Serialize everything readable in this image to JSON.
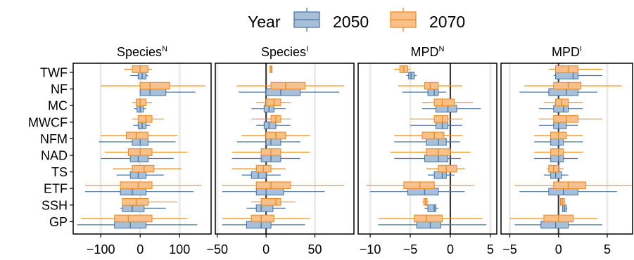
{
  "legend": {
    "title": "Year",
    "entries": [
      {
        "label": "2050",
        "fill": "#a8bfd8",
        "stroke": "#4a78a8"
      },
      {
        "label": "2070",
        "fill": "#f9c08a",
        "stroke": "#f08c24"
      }
    ]
  },
  "chart_data": [
    {
      "type": "box",
      "title": "Species",
      "title_sup": "N",
      "categories": [
        "TWF",
        "NF",
        "MC",
        "MWCF",
        "NFM",
        "NAD",
        "TS",
        "ETF",
        "SSH",
        "GP"
      ],
      "xlim": [
        -170,
        180
      ],
      "xticks": [
        -100,
        0,
        100
      ],
      "grid": true,
      "zero_line": false,
      "series": [
        {
          "name": "2050",
          "boxes": [
            {
              "min": -25,
              "q1": -5,
              "median": 5,
              "q3": 15,
              "max": 20
            },
            {
              "min": 0,
              "q1": 0,
              "median": 25,
              "q3": 65,
              "max": 140
            },
            {
              "min": -15,
              "q1": -8,
              "median": 0,
              "q3": 8,
              "max": 15
            },
            {
              "min": -18,
              "q1": -5,
              "median": 5,
              "q3": 15,
              "max": 25
            },
            {
              "min": -105,
              "q1": -20,
              "median": 0,
              "q3": 20,
              "max": 90
            },
            {
              "min": -100,
              "q1": -25,
              "median": -5,
              "q3": 20,
              "max": 85
            },
            {
              "min": -60,
              "q1": -25,
              "median": -5,
              "q3": 15,
              "max": 60
            },
            {
              "min": -140,
              "q1": -50,
              "median": -20,
              "q3": 15,
              "max": 135
            },
            {
              "min": -50,
              "q1": -45,
              "median": -20,
              "q3": 10,
              "max": 65
            },
            {
              "min": -160,
              "q1": -65,
              "median": -25,
              "q3": 15,
              "max": 145
            }
          ]
        },
        {
          "name": "2070",
          "boxes": [
            {
              "min": -40,
              "q1": -20,
              "median": 0,
              "q3": 20,
              "max": 30
            },
            {
              "min": -100,
              "q1": 0,
              "median": 25,
              "q3": 75,
              "max": 165
            },
            {
              "min": -20,
              "q1": -10,
              "median": 0,
              "q3": 15,
              "max": 30
            },
            {
              "min": -20,
              "q1": -5,
              "median": 15,
              "q3": 30,
              "max": 60
            },
            {
              "min": -100,
              "q1": -35,
              "median": -10,
              "q3": 20,
              "max": 95
            },
            {
              "min": -90,
              "q1": -30,
              "median": 0,
              "q3": 30,
              "max": 120
            },
            {
              "min": -70,
              "q1": -20,
              "median": 10,
              "q3": 35,
              "max": 105
            },
            {
              "min": -140,
              "q1": -50,
              "median": -5,
              "q3": 30,
              "max": 155
            },
            {
              "min": -45,
              "q1": -45,
              "median": -10,
              "q3": 20,
              "max": 95
            },
            {
              "min": -150,
              "q1": -65,
              "median": -30,
              "q3": 30,
              "max": 120
            }
          ]
        }
      ]
    },
    {
      "type": "box",
      "title": "Species",
      "title_sup": "I",
      "categories": [
        "TWF",
        "NF",
        "MC",
        "MWCF",
        "NFM",
        "NAD",
        "TS",
        "ETF",
        "SSH",
        "GP"
      ],
      "xlim": [
        -52,
        90
      ],
      "xticks": [
        -50,
        0,
        50
      ],
      "grid": true,
      "zero_line": true,
      "series": [
        {
          "name": "2050",
          "boxes": [
            {
              "min": null,
              "q1": null,
              "median": null,
              "q3": null,
              "max": null
            },
            {
              "min": -28,
              "q1": 0,
              "median": 15,
              "q3": 35,
              "max": 75
            },
            {
              "min": -15,
              "q1": -2,
              "median": 3,
              "q3": 8,
              "max": 20
            },
            {
              "min": -10,
              "q1": -2,
              "median": 3,
              "q3": 10,
              "max": 25
            },
            {
              "min": -30,
              "q1": 0,
              "median": 5,
              "q3": 15,
              "max": 35
            },
            {
              "min": -35,
              "q1": -5,
              "median": 5,
              "q3": 15,
              "max": 35
            },
            {
              "min": -25,
              "q1": -15,
              "median": -8,
              "q3": 0,
              "max": 15
            },
            {
              "min": -45,
              "q1": -10,
              "median": 0,
              "q3": 18,
              "max": 60
            },
            {
              "min": -20,
              "q1": -10,
              "median": -5,
              "q3": 7,
              "max": 20
            },
            {
              "min": -45,
              "q1": -20,
              "median": -5,
              "q3": 5,
              "max": 40
            }
          ]
        },
        {
          "name": "2070",
          "boxes": [
            {
              "min": 4,
              "q1": 4,
              "median": 5,
              "q3": 6,
              "max": 6
            },
            {
              "min": -30,
              "q1": 5,
              "median": 20,
              "q3": 40,
              "max": 80
            },
            {
              "min": -10,
              "q1": 0,
              "median": 8,
              "q3": 15,
              "max": 25
            },
            {
              "min": -15,
              "q1": 5,
              "median": 10,
              "q3": 15,
              "max": 25
            },
            {
              "min": -25,
              "q1": 0,
              "median": 10,
              "q3": 20,
              "max": 45
            },
            {
              "min": -35,
              "q1": -5,
              "median": 5,
              "q3": 15,
              "max": 45
            },
            {
              "min": -35,
              "q1": -10,
              "median": -3,
              "q3": 5,
              "max": 20
            },
            {
              "min": -45,
              "q1": -10,
              "median": 5,
              "q3": 25,
              "max": 80
            },
            {
              "min": -15,
              "q1": -5,
              "median": 10,
              "q3": 15,
              "max": 30
            },
            {
              "min": -45,
              "q1": -15,
              "median": -5,
              "q3": 8,
              "max": 45
            }
          ]
        }
      ]
    },
    {
      "type": "box",
      "title": "MPD",
      "title_sup": "N",
      "categories": [
        "TWF",
        "NF",
        "MC",
        "MWCF",
        "NFM",
        "NAD",
        "TS",
        "ETF",
        "SSH",
        "GP"
      ],
      "xlim": [
        -11.5,
        5.8
      ],
      "xticks": [
        -10,
        -5,
        0,
        5
      ],
      "grid": true,
      "zero_line": true,
      "series": [
        {
          "name": "2050",
          "boxes": [
            {
              "min": -5.5,
              "q1": -5.2,
              "median": -4.9,
              "q3": -4.5,
              "max": -4.2
            },
            {
              "min": -6.0,
              "q1": -2.8,
              "median": -2.0,
              "q3": -1.5,
              "max": -0.5
            },
            {
              "min": -3.5,
              "q1": -1.8,
              "median": -0.3,
              "q3": 0.8,
              "max": 3.8
            },
            {
              "min": -5.0,
              "q1": -1.8,
              "median": -1.0,
              "q3": -0.3,
              "max": 1.5
            },
            {
              "min": -7.0,
              "q1": -3.0,
              "median": -1.5,
              "q3": -0.5,
              "max": 1.2
            },
            {
              "min": -7.0,
              "q1": -3.2,
              "median": -1.5,
              "q3": -0.3,
              "max": 1.3
            },
            {
              "min": -2.8,
              "q1": -2.0,
              "median": -1.0,
              "q3": -0.5,
              "max": 0.5
            },
            {
              "min": -10.0,
              "q1": -5.3,
              "median": -3.2,
              "q3": -1.5,
              "max": 1.8
            },
            {
              "min": -3.2,
              "q1": -2.8,
              "median": -2.0,
              "q3": -1.8,
              "max": -1.5
            },
            {
              "min": -9.0,
              "q1": -4.2,
              "median": -2.5,
              "q3": -1.2,
              "max": 4.5
            }
          ]
        },
        {
          "name": "2070",
          "boxes": [
            {
              "min": -7.0,
              "q1": -6.3,
              "median": -5.8,
              "q3": -5.3,
              "max": -5.0
            },
            {
              "min": -6.5,
              "q1": -3.2,
              "median": -2.5,
              "q3": -1.5,
              "max": 1.5
            },
            {
              "min": -3.5,
              "q1": -2.0,
              "median": -1.0,
              "q3": 0.5,
              "max": 2.8
            },
            {
              "min": -5.0,
              "q1": -2.0,
              "median": -1.0,
              "q3": -0.3,
              "max": 1.5
            },
            {
              "min": -7.0,
              "q1": -3.5,
              "median": -2.0,
              "q3": -0.8,
              "max": 1.5
            },
            {
              "min": -7.5,
              "q1": -3.0,
              "median": -1.5,
              "q3": 0.0,
              "max": 2.5
            },
            {
              "min": -3.0,
              "q1": -1.5,
              "median": -0.5,
              "q3": 0.8,
              "max": 1.8
            },
            {
              "min": -10.5,
              "q1": -5.8,
              "median": -3.8,
              "q3": -2.0,
              "max": 3.0
            },
            {
              "min": -3.5,
              "q1": -3.3,
              "median": -3.1,
              "q3": -2.9,
              "max": -2.7
            },
            {
              "min": -9.0,
              "q1": -4.5,
              "median": -3.0,
              "q3": -1.0,
              "max": 4.0
            }
          ]
        }
      ]
    },
    {
      "type": "box",
      "title": "MPD",
      "title_sup": "I",
      "categories": [
        "TWF",
        "NF",
        "MC",
        "MWCF",
        "NFM",
        "NAD",
        "TS",
        "ETF",
        "SSH",
        "GP"
      ],
      "xlim": [
        -5.9,
        7.6
      ],
      "xticks": [
        -5,
        0,
        5
      ],
      "grid": true,
      "zero_line": true,
      "series": [
        {
          "name": "2050",
          "boxes": [
            {
              "min": -0.5,
              "q1": -0.3,
              "median": 1.5,
              "q3": 2.0,
              "max": 4.5
            },
            {
              "min": -4.0,
              "q1": -1.0,
              "median": 0.8,
              "q3": 2.0,
              "max": 4.0
            },
            {
              "min": -2.0,
              "q1": -0.5,
              "median": 0.5,
              "q3": 1.0,
              "max": 2.5
            },
            {
              "min": -2.0,
              "q1": -0.5,
              "median": 0.0,
              "q3": 0.8,
              "max": 2.0
            },
            {
              "min": -2.5,
              "q1": -0.8,
              "median": 0.0,
              "q3": 0.5,
              "max": 2.5
            },
            {
              "min": -2.5,
              "q1": -0.8,
              "median": 0.0,
              "q3": 0.5,
              "max": 2.0
            },
            {
              "min": -1.5,
              "q1": -0.8,
              "median": -0.3,
              "q3": 0.3,
              "max": 1.0
            },
            {
              "min": -4.0,
              "q1": -1.0,
              "median": 0.5,
              "q3": 2.0,
              "max": 6.0
            },
            {
              "min": 0.4,
              "q1": 0.4,
              "median": 0.6,
              "q3": 0.8,
              "max": 0.9
            },
            {
              "min": -4.5,
              "q1": -1.8,
              "median": -0.3,
              "q3": 1.0,
              "max": 4.5
            }
          ]
        },
        {
          "name": "2070",
          "boxes": [
            {
              "min": -1.0,
              "q1": -0.3,
              "median": 1.0,
              "q3": 2.0,
              "max": 4.5
            },
            {
              "min": -3.5,
              "q1": -0.5,
              "median": 1.0,
              "q3": 2.3,
              "max": 6.5
            },
            {
              "min": -1.5,
              "q1": -0.3,
              "median": 0.3,
              "q3": 1.0,
              "max": 2.5
            },
            {
              "min": -2.0,
              "q1": -0.5,
              "median": 0.8,
              "q3": 2.0,
              "max": 4.5
            },
            {
              "min": -2.5,
              "q1": -0.8,
              "median": 0.0,
              "q3": 0.8,
              "max": 2.5
            },
            {
              "min": -2.5,
              "q1": -0.8,
              "median": 0.0,
              "q3": 0.5,
              "max": 2.5
            },
            {
              "min": -1.2,
              "q1": -1.0,
              "median": -0.5,
              "q3": 0.0,
              "max": 0.5
            },
            {
              "min": -4.5,
              "q1": -0.5,
              "median": 1.0,
              "q3": 2.8,
              "max": 7.5
            },
            {
              "min": 0.2,
              "q1": 0.2,
              "median": 0.4,
              "q3": 0.6,
              "max": 0.7
            },
            {
              "min": -5.0,
              "q1": -1.5,
              "median": 0.0,
              "q3": 1.5,
              "max": 4.0
            }
          ]
        }
      ]
    }
  ]
}
